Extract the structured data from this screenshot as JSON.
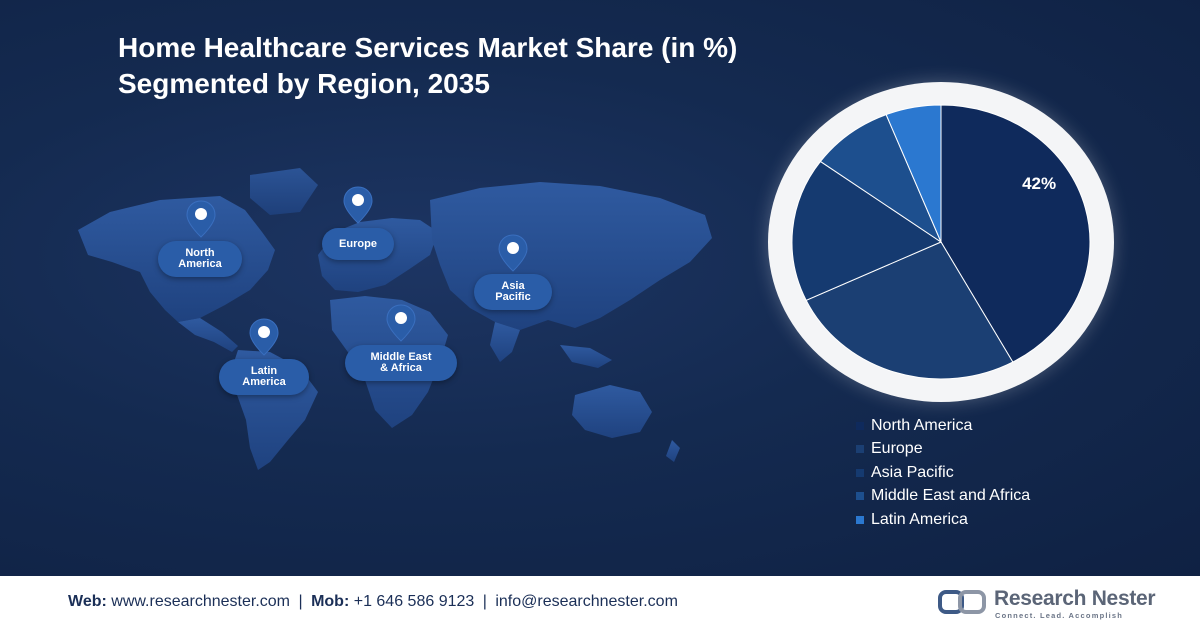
{
  "title": {
    "line1": "Home Healthcare Services Market Share (in %)",
    "line2": "Segmented by Region, 2035"
  },
  "map_pins": [
    {
      "label": "North America"
    },
    {
      "label": "Europe"
    },
    {
      "label": "Asia Pacific"
    },
    {
      "label": "Middle East & Africa"
    },
    {
      "label": "Latin America"
    }
  ],
  "chart_data": {
    "type": "pie",
    "title": "Home Healthcare Services Market Share (in %) Segmented by Region, 2035",
    "categories": [
      "North America",
      "Europe",
      "Asia Pacific",
      "Middle East and Africa",
      "Latin America"
    ],
    "values": [
      42,
      26,
      17,
      9,
      6
    ],
    "data_labels": [
      "42%",
      "",
      "",
      "",
      ""
    ],
    "colors": [
      "#0f2a5c",
      "#1b3f73",
      "#153a70",
      "#1d4f8e",
      "#2b78d0"
    ],
    "legend_position": "bottom-right"
  },
  "footer": {
    "web_label": "Web:",
    "web_value": "www.researchnester.com",
    "mob_label": "Mob:",
    "mob_value": "+1 646 586 9123",
    "email_value": "info@researchnester.com",
    "separator": "|"
  },
  "logo": {
    "name": "Research Nester",
    "tagline": "Connect. Lead. Accomplish"
  }
}
